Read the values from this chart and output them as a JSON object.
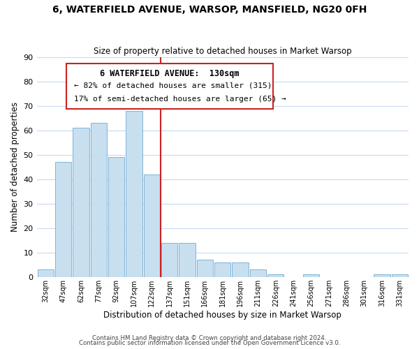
{
  "title": "6, WATERFIELD AVENUE, WARSOP, MANSFIELD, NG20 0FH",
  "subtitle": "Size of property relative to detached houses in Market Warsop",
  "xlabel": "Distribution of detached houses by size in Market Warsop",
  "ylabel": "Number of detached properties",
  "bar_color": "#c8dff0",
  "bar_edge_color": "#7fb4d4",
  "categories": [
    "32sqm",
    "47sqm",
    "62sqm",
    "77sqm",
    "92sqm",
    "107sqm",
    "122sqm",
    "137sqm",
    "151sqm",
    "166sqm",
    "181sqm",
    "196sqm",
    "211sqm",
    "226sqm",
    "241sqm",
    "256sqm",
    "271sqm",
    "286sqm",
    "301sqm",
    "316sqm",
    "331sqm"
  ],
  "values": [
    3,
    47,
    61,
    63,
    49,
    68,
    42,
    14,
    14,
    7,
    6,
    6,
    3,
    1,
    0,
    1,
    0,
    0,
    0,
    1,
    1
  ],
  "ylim": [
    0,
    90
  ],
  "yticks": [
    0,
    10,
    20,
    30,
    40,
    50,
    60,
    70,
    80,
    90
  ],
  "annotation_box_text_line1": "6 WATERFIELD AVENUE:  130sqm",
  "annotation_box_text_line2": "← 82% of detached houses are smaller (315)",
  "annotation_box_text_line3": "17% of semi-detached houses are larger (65) →",
  "highlight_bar_index": 6,
  "highlight_line_color": "#cc2222",
  "annotation_box_edge_color": "#cc2222",
  "footer_line1": "Contains HM Land Registry data © Crown copyright and database right 2024.",
  "footer_line2": "Contains public sector information licensed under the Open Government Licence v3.0.",
  "background_color": "#ffffff",
  "grid_color": "#c8daf0"
}
